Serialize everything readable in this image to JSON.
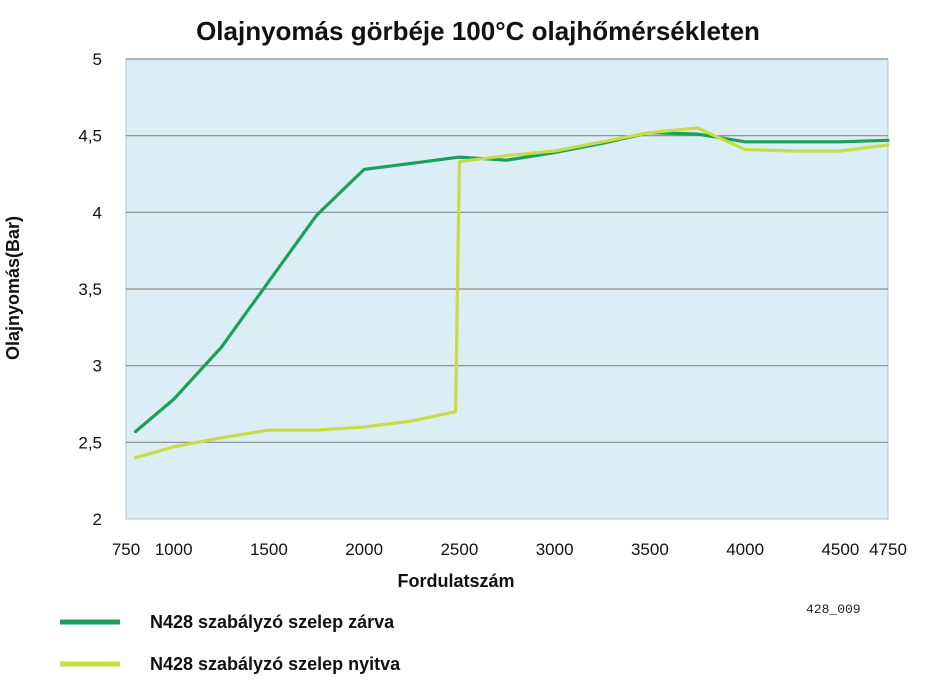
{
  "chart_data": {
    "type": "line",
    "title": "Olajnyomás görbéje 100°C olajhőmérsékleten",
    "xlabel": "Fordulatszám",
    "ylabel": "Olajnyomás(Bar)",
    "xlim": [
      750,
      4750
    ],
    "ylim": [
      2,
      5
    ],
    "x_ticks": [
      750,
      1000,
      1500,
      2000,
      2500,
      3000,
      3500,
      4000,
      4500,
      4750
    ],
    "x_tick_labels": [
      "750",
      "1000",
      "1500",
      "2000",
      "2500",
      "3000",
      "3500",
      "4000",
      "4500",
      "4750"
    ],
    "y_ticks": [
      2,
      2.5,
      3,
      3.5,
      4,
      4.5,
      5
    ],
    "y_tick_labels": [
      "2",
      "2,5",
      "3",
      "3,5",
      "4",
      "4,5",
      "5"
    ],
    "grid": "horizontal",
    "legend_position": "bottom-left",
    "colors": {
      "plot_background": "#dbeef5",
      "grid_line": "#8a8a8a"
    },
    "series": [
      {
        "name": "N428 szabályzó szelep zárva",
        "color": "#1aa05a",
        "x": [
          800,
          1000,
          1250,
          1500,
          1750,
          2000,
          2250,
          2500,
          2750,
          3000,
          3250,
          3500,
          3750,
          4000,
          4250,
          4500,
          4750
        ],
        "y": [
          2.57,
          2.78,
          3.12,
          3.55,
          3.98,
          4.28,
          4.32,
          4.36,
          4.34,
          4.39,
          4.45,
          4.52,
          4.51,
          4.46,
          4.46,
          4.46,
          4.47
        ]
      },
      {
        "name": "N428 szabályzó szelep nyitva",
        "color": "#c8dc46",
        "x": [
          800,
          1000,
          1250,
          1500,
          1750,
          2000,
          2250,
          2480,
          2500,
          2750,
          3000,
          3250,
          3500,
          3750,
          4000,
          4250,
          4500,
          4750
        ],
        "y": [
          2.4,
          2.47,
          2.53,
          2.58,
          2.58,
          2.6,
          2.64,
          2.7,
          4.33,
          4.37,
          4.4,
          4.46,
          4.52,
          4.55,
          4.41,
          4.4,
          4.4,
          4.44
        ]
      }
    ]
  },
  "footer": {
    "figure_code": "428_009"
  }
}
